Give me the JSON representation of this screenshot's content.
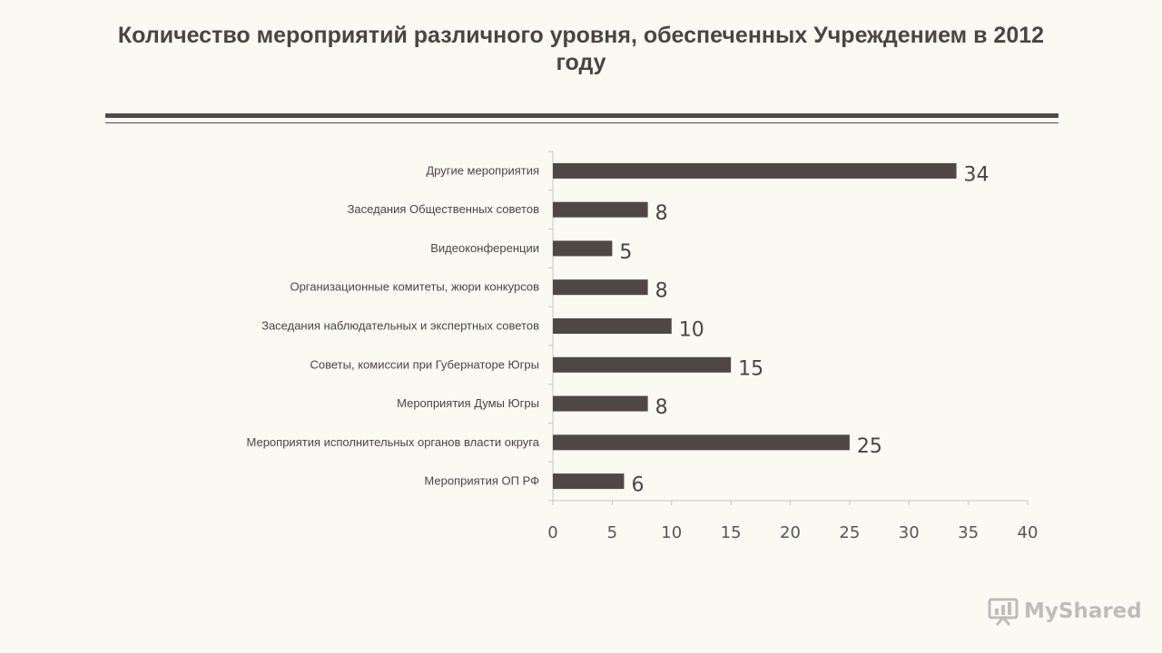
{
  "title": "Количество мероприятий различного уровня, обеспеченных Учреждением в 2012 году",
  "watermark": "MyShared",
  "colors": {
    "background": "#fbfaf2",
    "bar": "#4f4744",
    "text": "#4a4542"
  },
  "chart_data": {
    "type": "bar",
    "orientation": "horizontal",
    "categories": [
      "Другие мероприятия",
      "Заседания Общественных советов",
      "Видеоконференции",
      "Организационные комитеты, жюри конкурсов",
      "Заседания наблюдательных и экспертных советов",
      "Советы, комиссии при Губернаторе Югры",
      "Мероприятия Думы Югры",
      "Мероприятия исполнительных органов власти округа",
      "Мероприятия ОП РФ"
    ],
    "values": [
      34,
      8,
      5,
      8,
      10,
      15,
      8,
      25,
      6
    ],
    "xlim": [
      0,
      40
    ],
    "xticks": [
      0,
      5,
      10,
      15,
      20,
      25,
      30,
      35,
      40
    ],
    "data_labels": true,
    "grid": false,
    "legend": "none"
  }
}
